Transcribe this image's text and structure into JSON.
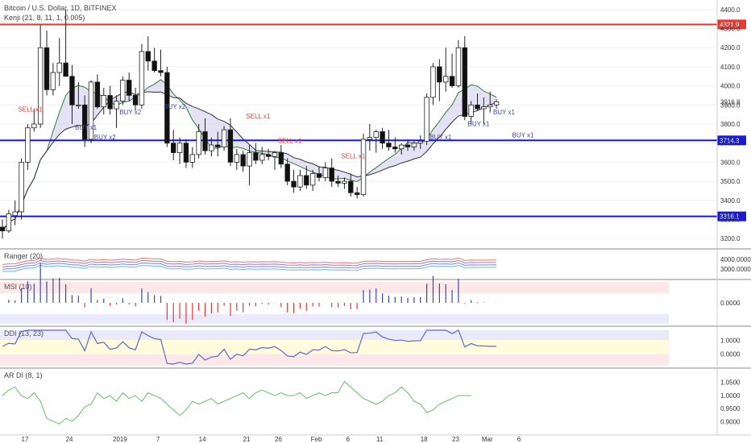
{
  "chart_data": {
    "type": "candlestick",
    "symbol_title": "Bitcoin / U.S. Dollar, 1D, BITFINEX",
    "indicator_title": "Kenji (21, 8, 11, 1, 0.005)",
    "price_ticks": [
      "4400.0",
      "4300.0",
      "4200.0",
      "4100.0",
      "4000.0",
      "3900.0",
      "3800.0",
      "3700.0",
      "3600.0",
      "3500.0",
      "3400.0",
      "3300.0",
      "3200.0"
    ],
    "price_tick_values": [
      4400,
      4300,
      4200,
      4100,
      4000,
      3900,
      3800,
      3700,
      3600,
      3500,
      3400,
      3300,
      3200
    ],
    "ylim": [
      3150,
      4450
    ],
    "x_ticks": [
      {
        "label": "17",
        "day": 0
      },
      {
        "label": "24",
        "day": 7
      },
      {
        "label": "2019",
        "day": 15
      },
      {
        "label": "7",
        "day": 21
      },
      {
        "label": "14",
        "day": 28
      },
      {
        "label": "21",
        "day": 35
      },
      {
        "label": "26",
        "day": 40
      },
      {
        "label": "Feb",
        "day": 46
      },
      {
        "label": "6",
        "day": 51
      },
      {
        "label": "11",
        "day": 56
      },
      {
        "label": "18",
        "day": 63
      },
      {
        "label": "23",
        "day": 68
      },
      {
        "label": "Mar",
        "day": 73
      },
      {
        "label": "6",
        "day": 78
      }
    ],
    "hlines": [
      {
        "label": "4321.9",
        "value": 4321.9,
        "color": "#e53935"
      },
      {
        "label": "3714.3",
        "value": 3714.3,
        "color": "#1a1ad6"
      },
      {
        "label": "3316.1",
        "value": 3316.1,
        "color": "#1a1ad6"
      }
    ],
    "last_price_label": "3916.8",
    "last_price": 3916.8,
    "candles": [
      {
        "o": 3260,
        "h": 3300,
        "l": 3200,
        "c": 3240
      },
      {
        "o": 3240,
        "h": 3350,
        "l": 3230,
        "c": 3330
      },
      {
        "o": 3320,
        "h": 3400,
        "l": 3270,
        "c": 3340
      },
      {
        "o": 3340,
        "h": 3620,
        "l": 3300,
        "c": 3600
      },
      {
        "o": 3600,
        "h": 3800,
        "l": 3560,
        "c": 3780
      },
      {
        "o": 3780,
        "h": 3880,
        "l": 3760,
        "c": 3800
      },
      {
        "o": 3800,
        "h": 4320,
        "l": 3780,
        "c": 4200
      },
      {
        "o": 4200,
        "h": 4290,
        "l": 3950,
        "c": 3980
      },
      {
        "o": 3980,
        "h": 4120,
        "l": 3950,
        "c": 4070
      },
      {
        "o": 4070,
        "h": 4250,
        "l": 4000,
        "c": 4120
      },
      {
        "o": 4120,
        "h": 4400,
        "l": 4050,
        "c": 4050
      },
      {
        "o": 4050,
        "h": 4110,
        "l": 3800,
        "c": 3900
      },
      {
        "o": 3900,
        "h": 4020,
        "l": 3880,
        "c": 3900
      },
      {
        "o": 3900,
        "h": 3950,
        "l": 3680,
        "c": 3720
      },
      {
        "o": 3720,
        "h": 4030,
        "l": 3700,
        "c": 4020
      },
      {
        "o": 4020,
        "h": 4060,
        "l": 3880,
        "c": 3890
      },
      {
        "o": 3890,
        "h": 3990,
        "l": 3850,
        "c": 3950
      },
      {
        "o": 3950,
        "h": 4000,
        "l": 3850,
        "c": 3880
      },
      {
        "o": 3880,
        "h": 3950,
        "l": 3780,
        "c": 3920
      },
      {
        "o": 3920,
        "h": 4050,
        "l": 3900,
        "c": 4030
      },
      {
        "o": 4030,
        "h": 4070,
        "l": 3920,
        "c": 3950
      },
      {
        "o": 3950,
        "h": 3990,
        "l": 3870,
        "c": 3900
      },
      {
        "o": 3900,
        "h": 4220,
        "l": 3880,
        "c": 4180
      },
      {
        "o": 4180,
        "h": 4260,
        "l": 4080,
        "c": 4130
      },
      {
        "o": 4130,
        "h": 4200,
        "l": 4070,
        "c": 4080
      },
      {
        "o": 4080,
        "h": 4190,
        "l": 4050,
        "c": 4070
      },
      {
        "o": 4070,
        "h": 4100,
        "l": 3680,
        "c": 3700
      },
      {
        "o": 3700,
        "h": 3770,
        "l": 3610,
        "c": 3650
      },
      {
        "o": 3650,
        "h": 3730,
        "l": 3590,
        "c": 3700
      },
      {
        "o": 3700,
        "h": 3720,
        "l": 3570,
        "c": 3600
      },
      {
        "o": 3600,
        "h": 3680,
        "l": 3570,
        "c": 3640
      },
      {
        "o": 3640,
        "h": 3800,
        "l": 3620,
        "c": 3760
      },
      {
        "o": 3760,
        "h": 3830,
        "l": 3640,
        "c": 3660
      },
      {
        "o": 3660,
        "h": 3730,
        "l": 3630,
        "c": 3690
      },
      {
        "o": 3690,
        "h": 3760,
        "l": 3630,
        "c": 3680
      },
      {
        "o": 3680,
        "h": 3790,
        "l": 3660,
        "c": 3770
      },
      {
        "o": 3770,
        "h": 3830,
        "l": 3580,
        "c": 3600
      },
      {
        "o": 3600,
        "h": 3670,
        "l": 3560,
        "c": 3640
      },
      {
        "o": 3640,
        "h": 3660,
        "l": 3550,
        "c": 3580
      },
      {
        "o": 3580,
        "h": 3690,
        "l": 3480,
        "c": 3650
      },
      {
        "o": 3650,
        "h": 3700,
        "l": 3590,
        "c": 3610
      },
      {
        "o": 3610,
        "h": 3680,
        "l": 3590,
        "c": 3640
      },
      {
        "o": 3640,
        "h": 3670,
        "l": 3610,
        "c": 3630
      },
      {
        "o": 3630,
        "h": 3660,
        "l": 3560,
        "c": 3650
      },
      {
        "o": 3650,
        "h": 3690,
        "l": 3570,
        "c": 3590
      },
      {
        "o": 3590,
        "h": 3620,
        "l": 3480,
        "c": 3500
      },
      {
        "o": 3500,
        "h": 3560,
        "l": 3440,
        "c": 3470
      },
      {
        "o": 3470,
        "h": 3560,
        "l": 3450,
        "c": 3530
      },
      {
        "o": 3530,
        "h": 3580,
        "l": 3460,
        "c": 3480
      },
      {
        "o": 3480,
        "h": 3560,
        "l": 3450,
        "c": 3540
      },
      {
        "o": 3540,
        "h": 3580,
        "l": 3500,
        "c": 3520
      },
      {
        "o": 3520,
        "h": 3600,
        "l": 3500,
        "c": 3570
      },
      {
        "o": 3570,
        "h": 3620,
        "l": 3470,
        "c": 3500
      },
      {
        "o": 3500,
        "h": 3530,
        "l": 3470,
        "c": 3490
      },
      {
        "o": 3490,
        "h": 3520,
        "l": 3460,
        "c": 3500
      },
      {
        "o": 3500,
        "h": 3540,
        "l": 3420,
        "c": 3440
      },
      {
        "o": 3440,
        "h": 3470,
        "l": 3410,
        "c": 3430
      },
      {
        "o": 3430,
        "h": 3750,
        "l": 3420,
        "c": 3720
      },
      {
        "o": 3720,
        "h": 3800,
        "l": 3660,
        "c": 3730
      },
      {
        "o": 3730,
        "h": 3770,
        "l": 3650,
        "c": 3760
      },
      {
        "o": 3760,
        "h": 3780,
        "l": 3670,
        "c": 3700
      },
      {
        "o": 3700,
        "h": 3770,
        "l": 3660,
        "c": 3680
      },
      {
        "o": 3680,
        "h": 3730,
        "l": 3650,
        "c": 3670
      },
      {
        "o": 3670,
        "h": 3700,
        "l": 3640,
        "c": 3690
      },
      {
        "o": 3690,
        "h": 3720,
        "l": 3660,
        "c": 3680
      },
      {
        "o": 3680,
        "h": 3710,
        "l": 3660,
        "c": 3700
      },
      {
        "o": 3700,
        "h": 3740,
        "l": 3670,
        "c": 3710
      },
      {
        "o": 3710,
        "h": 3960,
        "l": 3690,
        "c": 3940
      },
      {
        "o": 3940,
        "h": 4120,
        "l": 3900,
        "c": 4100
      },
      {
        "o": 4100,
        "h": 4140,
        "l": 3920,
        "c": 4020
      },
      {
        "o": 4020,
        "h": 4200,
        "l": 3970,
        "c": 4050
      },
      {
        "o": 4050,
        "h": 4170,
        "l": 3990,
        "c": 4000
      },
      {
        "o": 4000,
        "h": 4240,
        "l": 3990,
        "c": 4200
      },
      {
        "o": 4200,
        "h": 4260,
        "l": 3820,
        "c": 3840
      },
      {
        "o": 3840,
        "h": 3920,
        "l": 3800,
        "c": 3900
      },
      {
        "o": 3900,
        "h": 3960,
        "l": 3870,
        "c": 3880
      },
      {
        "o": 3880,
        "h": 3940,
        "l": 3800,
        "c": 3890
      },
      {
        "o": 3890,
        "h": 3970,
        "l": 3860,
        "c": 3900
      },
      {
        "o": 3900,
        "h": 3930,
        "l": 3880,
        "c": 3916.8
      }
    ],
    "signals": [
      {
        "label": "SELL x1",
        "type": "sell",
        "day": 4,
        "value": 3865
      },
      {
        "label": "BUY x1",
        "type": "buy",
        "day": 13,
        "value": 3770
      },
      {
        "label": "BUY x2",
        "type": "buy",
        "day": 16,
        "value": 3720
      },
      {
        "label": "BUY x2",
        "type": "buy",
        "day": 20,
        "value": 3850
      },
      {
        "label": "BUY x2",
        "type": "buy",
        "day": 27,
        "value": 3880
      },
      {
        "label": "SELL x1",
        "type": "sell",
        "day": 40,
        "value": 3830
      },
      {
        "label": "SELL x1",
        "type": "sell",
        "day": 45,
        "value": 3700
      },
      {
        "label": "SELL x1",
        "type": "sell",
        "day": 55,
        "value": 3620
      },
      {
        "label": "BUY x1",
        "type": "buy",
        "day": 69,
        "value": 3720
      },
      {
        "label": "BUY x1",
        "type": "buy",
        "day": 75,
        "value": 3790
      },
      {
        "label": "BUY x1",
        "type": "buy",
        "day": 79,
        "value": 3850
      },
      {
        "label": "BUY x1",
        "type": "buy",
        "day": 82,
        "value": 3730
      }
    ],
    "panes": [
      {
        "title": "Ranger (20)",
        "ticks": [
          "4000.0000",
          "3000.0000"
        ]
      },
      {
        "title": "MSI (10)",
        "ticks": [
          "0.0000"
        ]
      },
      {
        "title": "DDI (13, 23)",
        "ticks": [
          "1.0000",
          "0.0000"
        ]
      },
      {
        "title": "AR DI (8, 1)",
        "ticks": [
          "1.0500",
          "1.0000",
          "0.9500",
          "0.9000"
        ]
      }
    ],
    "ardi_values": [
      0.99,
      1.01,
      1.02,
      0.99,
      0.98,
      1.0,
      0.97,
      0.91,
      0.9,
      0.89,
      0.91,
      0.9,
      0.92,
      0.95,
      0.96,
      1.0,
      0.98,
      0.99,
      0.97,
      1.0,
      0.98,
      0.99,
      0.97,
      1.0,
      0.99,
      0.98,
      0.96,
      0.94,
      0.92,
      0.94,
      0.97,
      0.96,
      0.97,
      0.98,
      0.96,
      0.97,
      0.98,
      0.99,
      1.0,
      0.98,
      1.0,
      1.01,
      1.0,
      0.99,
      1.0,
      0.99,
      0.99,
      1.0,
      0.98,
      0.99,
      1.0,
      0.99,
      1.0,
      1.0,
      1.04,
      1.02,
      1.0,
      0.98,
      0.97,
      0.96,
      0.97,
      0.99,
      1.0,
      1.02,
      1.0,
      0.97,
      0.96,
      0.93,
      0.94,
      0.96,
      0.97,
      0.98,
      0.99,
      0.99,
      0.99
    ]
  }
}
